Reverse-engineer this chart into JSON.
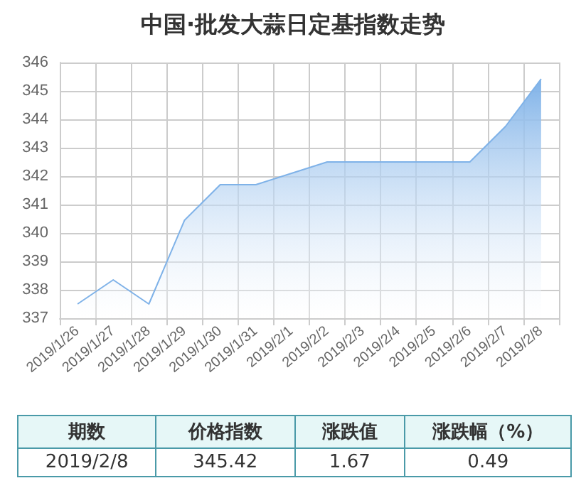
{
  "chart_data": {
    "type": "area",
    "title": "中国·批发大蒜日定基指数走势",
    "categories": [
      "2019/1/26",
      "2019/1/27",
      "2019/1/28",
      "2019/1/29",
      "2019/1/30",
      "2019/1/31",
      "2019/2/1",
      "2019/2/2",
      "2019/2/3",
      "2019/2/4",
      "2019/2/5",
      "2019/2/6",
      "2019/2/7",
      "2019/2/8"
    ],
    "values": [
      337.5,
      338.35,
      337.5,
      340.45,
      341.7,
      341.7,
      342.1,
      342.5,
      342.5,
      342.5,
      342.5,
      342.5,
      343.75,
      345.42
    ],
    "color": "#7fb2e8",
    "ylim": [
      337,
      346
    ],
    "yticks": [
      337,
      338,
      339,
      340,
      341,
      342,
      343,
      344,
      345,
      346
    ],
    "grid": true,
    "marker": "none",
    "annotations": [
      "期数",
      "价格指数",
      "涨跌值",
      "涨跌幅（%）",
      "2019/2/8",
      "345.42",
      "1.67",
      "0.49"
    ]
  }
}
